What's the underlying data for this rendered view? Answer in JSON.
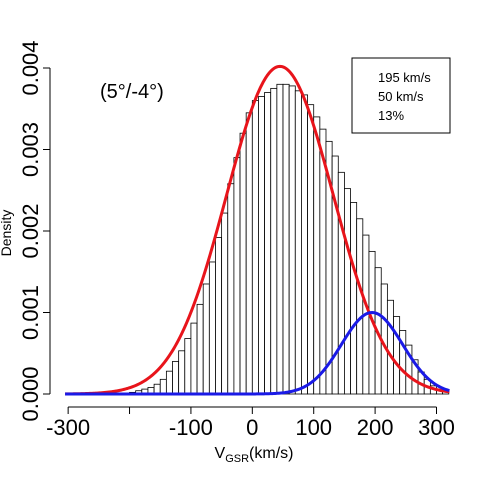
{
  "chart_data": {
    "type": "bar",
    "ylabel": "Density",
    "xlabel": {
      "main": "V",
      "sub": "GSR",
      "unit": "(km/s)"
    },
    "annotation": "(5°/-4°)",
    "legend_lines": [
      "195 km/s",
      "50 km/s",
      "13%"
    ],
    "xlim": [
      -310,
      322
    ],
    "ylim": [
      0,
      0.004
    ],
    "x_ticks": [
      -300,
      -200,
      -100,
      0,
      100,
      200,
      300
    ],
    "x_tick_labels": [
      "-300",
      "",
      "-100",
      "0",
      "100",
      "200",
      "300"
    ],
    "y_ticks": [
      0,
      0.001,
      0.002,
      0.003,
      0.004
    ],
    "y_tick_labels": [
      "0.000",
      "0.001",
      "0.002",
      "0.003",
      "0.004"
    ],
    "histogram": {
      "bin_width": 10,
      "bins_start": -200,
      "values": [
        2e-05,
        4e-05,
        6e-05,
        8e-05,
        0.00012,
        0.00018,
        0.00028,
        0.0004,
        0.00053,
        0.00068,
        0.00087,
        0.0011,
        0.00135,
        0.00162,
        0.00192,
        0.00222,
        0.00258,
        0.0029,
        0.0032,
        0.00345,
        0.0036,
        0.00365,
        0.0037,
        0.00375,
        0.0038,
        0.0038,
        0.00378,
        0.00372,
        0.00367,
        0.00355,
        0.0034,
        0.00325,
        0.0031,
        0.00292,
        0.00272,
        0.00252,
        0.00235,
        0.00215,
        0.00195,
        0.00175,
        0.00155,
        0.00135,
        0.00115,
        0.00095,
        0.00078,
        0.0006,
        0.00042,
        0.00027,
        0.00018,
        0.0001,
        5e-05,
        3e-05
      ]
    },
    "series": [
      {
        "color": "#e8141b",
        "mean": 45,
        "sigma": 87,
        "peak": 0.00402
      },
      {
        "color": "#1a1ae6",
        "mean": 195,
        "sigma": 50,
        "peak": 0.001
      }
    ]
  }
}
